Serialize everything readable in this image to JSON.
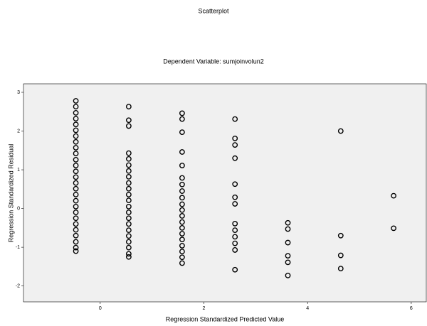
{
  "chart_data": {
    "type": "scatter",
    "title": "Scatterplot",
    "subtitle": "Dependent Variable: sumjoinvolun2",
    "x_label": "Regression Standardized Predicted Value",
    "y_label": "Regression Standardized Residual",
    "x": [
      -0.47,
      -0.47,
      -0.47,
      -0.47,
      -0.47,
      -0.47,
      -0.47,
      -0.47,
      -0.47,
      -0.47,
      -0.47,
      -0.47,
      -0.47,
      -0.47,
      -0.47,
      -0.47,
      -0.47,
      -0.47,
      -0.47,
      -0.47,
      -0.47,
      -0.47,
      -0.47,
      -0.47,
      -0.47,
      -0.47,
      -0.47,
      0.55,
      0.55,
      0.55,
      0.55,
      0.55,
      0.55,
      0.55,
      0.55,
      0.55,
      0.55,
      0.55,
      0.55,
      0.55,
      0.55,
      0.55,
      0.55,
      0.55,
      0.55,
      0.55,
      0.55,
      0.55,
      0.55,
      1.58,
      1.58,
      1.58,
      1.58,
      1.58,
      1.58,
      1.58,
      1.58,
      1.58,
      1.58,
      1.58,
      1.58,
      1.58,
      1.58,
      1.58,
      1.58,
      1.58,
      1.58,
      1.58,
      1.58,
      2.6,
      2.6,
      2.6,
      2.6,
      2.6,
      2.6,
      2.6,
      2.6,
      2.6,
      2.6,
      2.6,
      2.6,
      2.6,
      3.62,
      3.62,
      3.62,
      3.62,
      3.62,
      3.62,
      4.64,
      4.64,
      4.64,
      4.64,
      5.66,
      5.66
    ],
    "values": [
      2.78,
      2.63,
      2.47,
      2.32,
      2.17,
      2.02,
      1.87,
      1.72,
      1.57,
      1.42,
      1.26,
      1.11,
      0.96,
      0.81,
      0.66,
      0.51,
      0.36,
      0.2,
      0.05,
      -0.1,
      -0.25,
      -0.4,
      -0.55,
      -0.7,
      -0.86,
      -1.01,
      -1.1,
      2.63,
      2.28,
      2.13,
      1.43,
      1.28,
      1.12,
      0.97,
      0.82,
      0.66,
      0.51,
      0.36,
      0.21,
      0.05,
      -0.1,
      -0.25,
      -0.4,
      -0.56,
      -0.71,
      -0.86,
      -1.01,
      -1.17,
      -1.25,
      2.46,
      2.31,
      1.97,
      1.46,
      1.11,
      0.79,
      0.62,
      0.45,
      0.28,
      0.11,
      -0.04,
      -0.19,
      -0.35,
      -0.5,
      -0.65,
      -0.8,
      -0.96,
      -1.11,
      -1.26,
      -1.41,
      2.31,
      1.81,
      1.64,
      1.3,
      0.63,
      0.29,
      0.12,
      -0.39,
      -0.56,
      -0.73,
      -0.9,
      -1.07,
      -1.58,
      -0.37,
      -0.53,
      -0.88,
      -1.22,
      -1.39,
      -1.73,
      2.0,
      -0.7,
      -1.21,
      -1.55,
      0.33,
      -0.51
    ],
    "color": "#000000",
    "xlim": [
      -1.48,
      6.29
    ],
    "xticks": [
      0,
      2,
      4,
      6
    ],
    "ylim": [
      -2.41,
      3.22
    ],
    "yticks": [
      3,
      2,
      1,
      0,
      -1,
      -2
    ]
  }
}
